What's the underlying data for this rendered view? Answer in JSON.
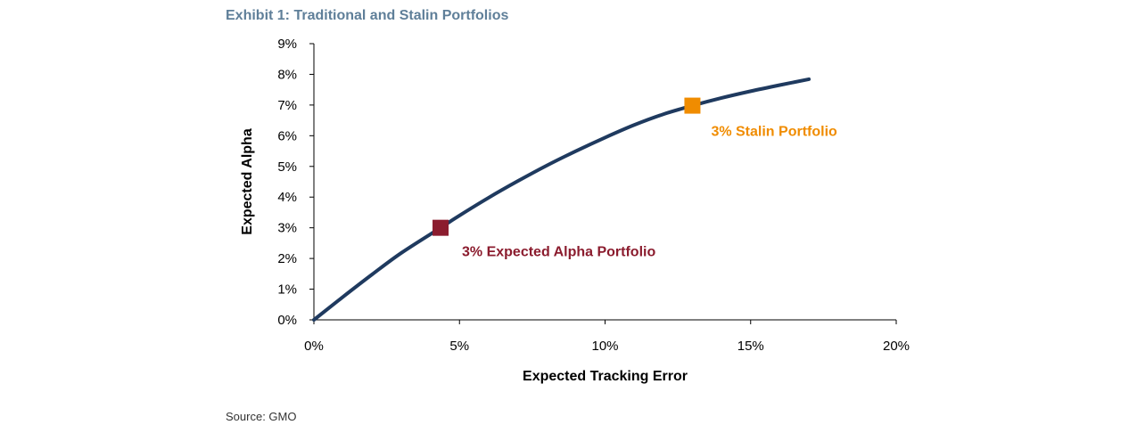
{
  "chart_data": {
    "type": "line",
    "title": "Exhibit 1: Traditional and Stalin Portfolios",
    "xlabel": "Expected Tracking Error",
    "ylabel": "Expected Alpha",
    "xlim": [
      0,
      20
    ],
    "ylim": [
      0,
      9
    ],
    "xticks": [
      0,
      5,
      10,
      15,
      20
    ],
    "xtick_labels": [
      "0%",
      "5%",
      "10%",
      "15%",
      "20%"
    ],
    "yticks": [
      0,
      1,
      2,
      3,
      4,
      5,
      6,
      7,
      8,
      9
    ],
    "ytick_labels": [
      "0%",
      "1%",
      "2%",
      "3%",
      "4%",
      "5%",
      "6%",
      "7%",
      "8%",
      "9%"
    ],
    "grid": false,
    "series": [
      {
        "color": "#1f3a5f",
        "x": [
          0,
          1,
          2,
          3,
          4.35,
          5,
          6,
          7,
          8,
          9,
          10,
          11,
          12,
          13,
          14,
          15,
          16,
          17
        ],
        "y": [
          0,
          0.75,
          1.48,
          2.18,
          3.0,
          3.4,
          3.98,
          4.52,
          5.03,
          5.5,
          5.94,
          6.35,
          6.7,
          6.98,
          7.23,
          7.45,
          7.65,
          7.84
        ]
      }
    ],
    "points": [
      {
        "x": 4.35,
        "y": 3.0,
        "label": "3% Expected Alpha Portfolio",
        "color": "#8b1c2e"
      },
      {
        "x": 13.0,
        "y": 6.98,
        "label": "3% Stalin Portfolio",
        "color": "#f08c00"
      }
    ]
  },
  "footer": {
    "source": "Source: GMO"
  }
}
